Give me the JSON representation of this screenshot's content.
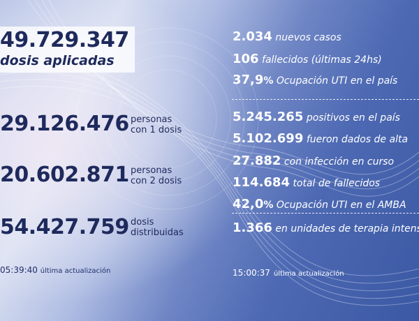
{
  "vaccination": {
    "applied_value": "49.729.347",
    "applied_label": "dosis aplicadas",
    "first_dose_value": "29.126.476",
    "first_dose_label_1": "personas",
    "first_dose_label_2": "con 1 dosis",
    "second_dose_value": "20.602.871",
    "second_dose_label_1": "personas",
    "second_dose_label_2": "con 2 dosis",
    "distributed_value": "54.427.759",
    "distributed_label_1": "dosis",
    "distributed_label_2": "distribuidas",
    "update_time": "05:39:40",
    "update_text": "última actualización"
  },
  "cases": {
    "new_cases_value": "2.034",
    "new_cases_label": "nuevos casos",
    "deaths_24h_value": "106",
    "deaths_24h_label": "fallecidos (últimas 24hs)",
    "icu_country_value": "37,9",
    "icu_country_pct": "%",
    "icu_country_label": "Ocupación UTI en el país",
    "positives_value": "5.245.265",
    "positives_label": "positivos en el país",
    "discharged_value": "5.102.699",
    "discharged_label": "fueron dados de alta",
    "active_value": "27.882",
    "active_label": "con infección en curso",
    "total_deaths_value": "114.684",
    "total_deaths_label": "total de fallecidos",
    "icu_amba_value": "42,0",
    "icu_amba_pct": "%",
    "icu_amba_label": "Ocupación UTI en el AMBA",
    "icu_units_value": "1.366",
    "icu_units_label": "en unidades de terapia intensiva",
    "update_time": "15:00:37",
    "update_text": "última actualización"
  },
  "colors": {
    "navy_text": "#1e2a5c",
    "white_text": "#ffffff",
    "background_light": "#d8def1",
    "background_dark": "#3b58a4"
  }
}
